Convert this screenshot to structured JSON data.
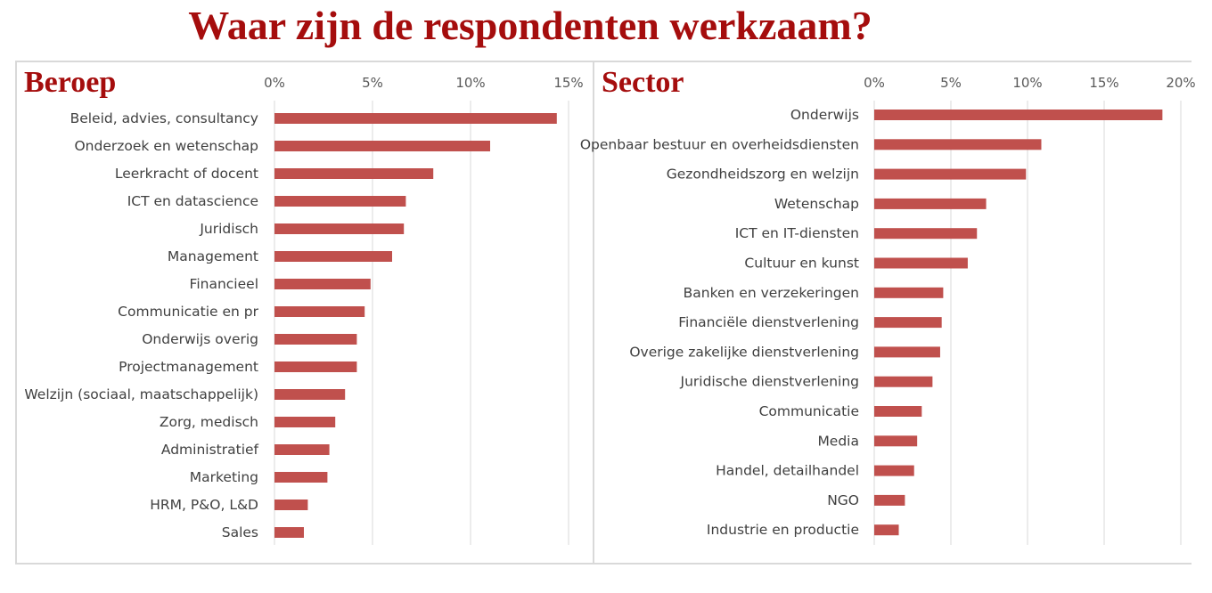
{
  "title": "Waar zijn de respondenten werkzaam?",
  "chart_data": [
    {
      "type": "bar",
      "orientation": "horizontal",
      "title": "Beroep",
      "bar_color": "#c0504d",
      "xlim": [
        0,
        15
      ],
      "ticks": [
        "0%",
        "5%",
        "10%",
        "15%"
      ],
      "tick_values": [
        0,
        5,
        10,
        15
      ],
      "grid": true,
      "categories": [
        "Beleid, advies, consultancy",
        "Onderzoek en wetenschap",
        "Leerkracht of docent",
        "ICT en datascience",
        "Juridisch",
        "Management",
        "Financieel",
        "Communicatie en pr",
        "Onderwijs overig",
        "Projectmanagement",
        "Welzijn (sociaal, maatschappelijk)",
        "Zorg, medisch",
        "Administratief",
        "Marketing",
        "HRM, P&O, L&D",
        "Sales"
      ],
      "values": [
        14.4,
        11.0,
        8.1,
        6.7,
        6.6,
        6.0,
        4.9,
        4.6,
        4.2,
        4.2,
        3.6,
        3.1,
        2.8,
        2.7,
        1.7,
        1.5
      ]
    },
    {
      "type": "bar",
      "orientation": "horizontal",
      "title": "Sector",
      "bar_color": "#c0504d",
      "xlim": [
        0,
        20
      ],
      "ticks": [
        "0%",
        "5%",
        "10%",
        "15%",
        "20%"
      ],
      "tick_values": [
        0,
        5,
        10,
        15,
        20
      ],
      "grid": true,
      "categories": [
        "Onderwijs",
        "Openbaar bestuur en overheidsdiensten",
        "Gezondheidszorg en welzijn",
        "Wetenschap",
        "ICT en IT-diensten",
        "Cultuur en kunst",
        "Banken en verzekeringen",
        "Financiële dienstverlening",
        "Overige zakelijke dienstverlening",
        "Juridische dienstverlening",
        "Communicatie",
        "Media",
        "Handel, detailhandel",
        "NGO",
        "Industrie en productie"
      ],
      "values": [
        18.8,
        10.9,
        9.9,
        7.3,
        6.7,
        6.1,
        4.5,
        4.4,
        4.3,
        3.8,
        3.1,
        2.8,
        2.6,
        2.0,
        1.6
      ]
    }
  ]
}
